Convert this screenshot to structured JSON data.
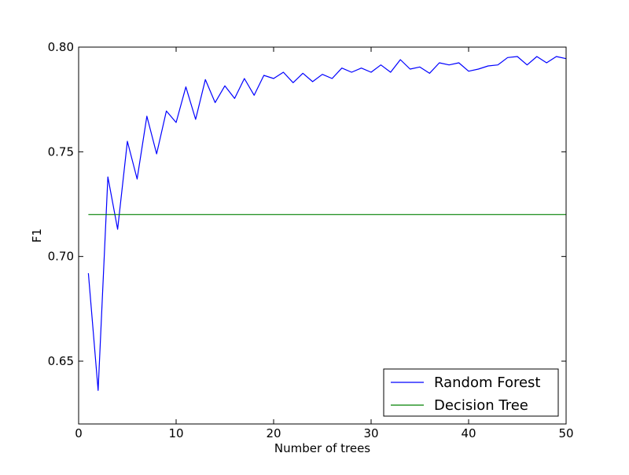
{
  "chart_data": {
    "type": "line",
    "xlabel": "Number of trees",
    "ylabel": "F1",
    "xlim": [
      0,
      50
    ],
    "ylim": [
      0.62,
      0.8
    ],
    "xticks": [
      0,
      10,
      20,
      30,
      40,
      50
    ],
    "xtick_labels": [
      "0",
      "10",
      "20",
      "30",
      "40",
      "50"
    ],
    "yticks": [
      0.65,
      0.7,
      0.75,
      0.8
    ],
    "ytick_labels": [
      "0.65",
      "0.70",
      "0.75",
      "0.80"
    ],
    "grid": false,
    "legend_position": "lower-right",
    "series": [
      {
        "name": "Random Forest",
        "color": "#0000ff",
        "x": [
          1,
          2,
          3,
          4,
          5,
          6,
          7,
          8,
          9,
          10,
          11,
          12,
          13,
          14,
          15,
          16,
          17,
          18,
          19,
          20,
          21,
          22,
          23,
          24,
          25,
          26,
          27,
          28,
          29,
          30,
          31,
          32,
          33,
          34,
          35,
          36,
          37,
          38,
          39,
          40,
          41,
          42,
          43,
          44,
          45,
          46,
          47,
          48,
          49,
          50
        ],
        "y": [
          0.692,
          0.636,
          0.738,
          0.713,
          0.755,
          0.737,
          0.767,
          0.749,
          0.7695,
          0.764,
          0.781,
          0.7655,
          0.7845,
          0.7735,
          0.7815,
          0.7755,
          0.785,
          0.777,
          0.7865,
          0.785,
          0.788,
          0.783,
          0.7875,
          0.7835,
          0.787,
          0.785,
          0.79,
          0.788,
          0.79,
          0.788,
          0.7915,
          0.788,
          0.794,
          0.7895,
          0.7905,
          0.7875,
          0.7925,
          0.7915,
          0.7925,
          0.7885,
          0.7895,
          0.791,
          0.7915,
          0.795,
          0.7955,
          0.7915,
          0.7955,
          0.7925,
          0.7955,
          0.7945
        ]
      },
      {
        "name": "Decision Tree",
        "color": "#008000",
        "x": [
          1,
          50
        ],
        "y": [
          0.72,
          0.72
        ]
      }
    ]
  }
}
